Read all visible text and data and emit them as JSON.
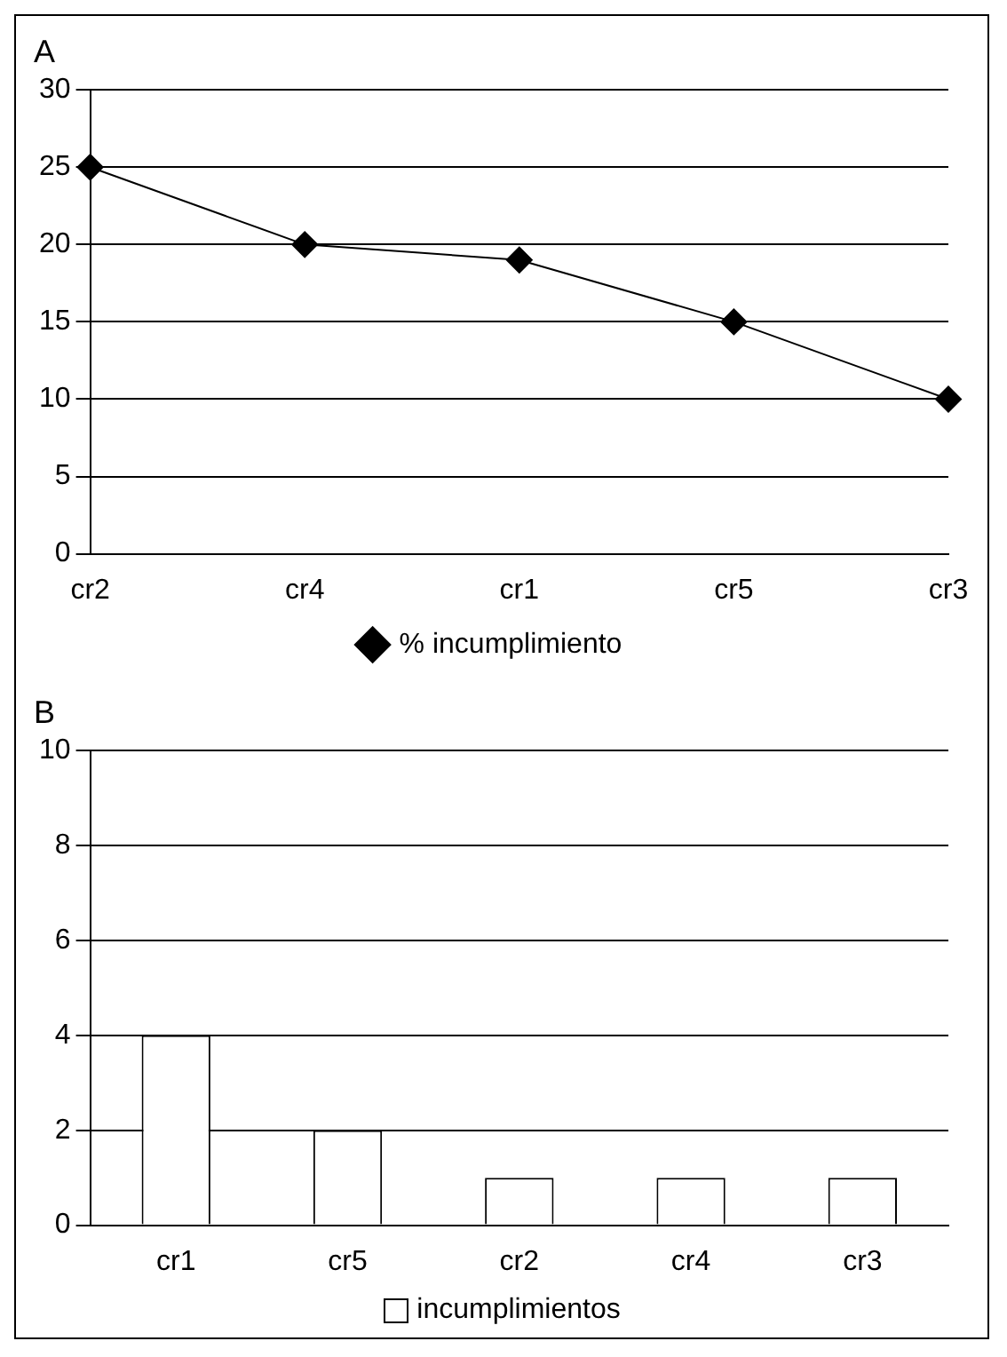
{
  "chart_data": [
    {
      "type": "line",
      "title": "A",
      "categories": [
        "cr2",
        "cr4",
        "cr1",
        "cr5",
        "cr3"
      ],
      "series": [
        {
          "name": "% incumplimiento",
          "color": "#000000",
          "values": [
            25,
            20,
            19,
            15,
            10
          ]
        }
      ],
      "ylim": [
        0,
        30
      ],
      "yticks": [
        0,
        5,
        10,
        15,
        20,
        25,
        30
      ],
      "grid": "y",
      "legend": "bottom",
      "marker": "diamond",
      "line_style": "solid"
    },
    {
      "type": "bar",
      "title": "B",
      "categories": [
        "cr1",
        "cr5",
        "cr2",
        "cr4",
        "cr3"
      ],
      "series": [
        {
          "name": "incumplimientos",
          "color": "#ffffff",
          "values": [
            4,
            2,
            1,
            1,
            1
          ]
        }
      ],
      "ylim": [
        0,
        10
      ],
      "yticks": [
        0,
        2,
        4,
        6,
        8,
        10
      ],
      "grid": "y",
      "legend": "bottom"
    }
  ]
}
